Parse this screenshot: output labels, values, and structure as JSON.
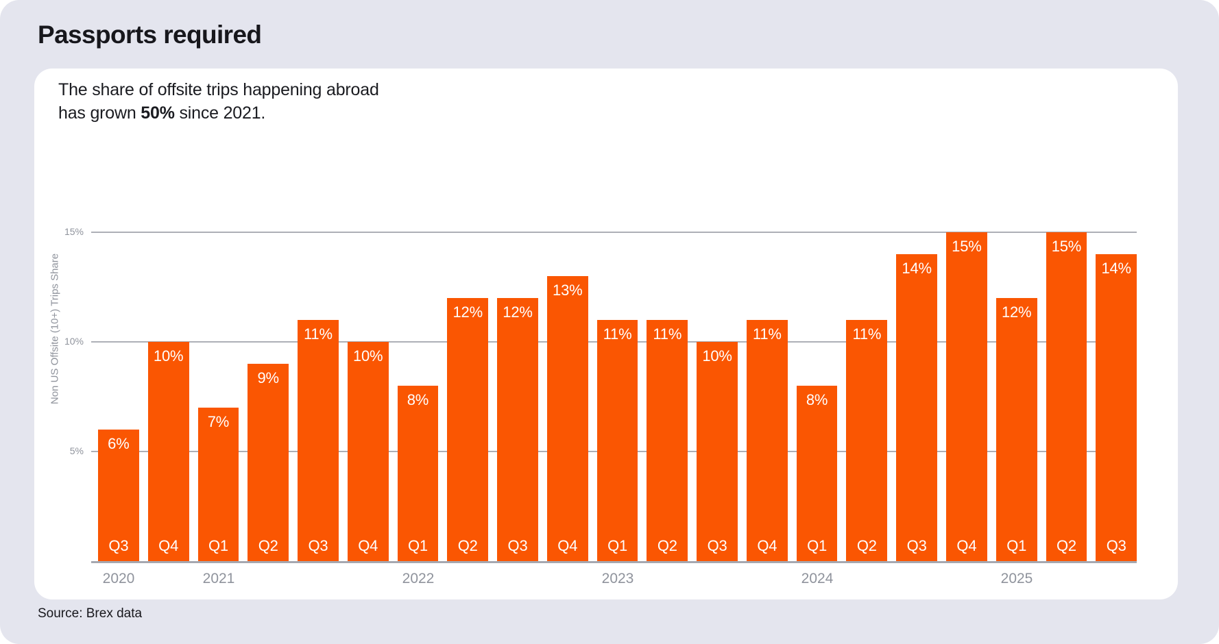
{
  "page": {
    "title": "Passports required",
    "source": "Source: Brex data",
    "background_color": "#E4E5EE",
    "card_color": "#FFFFFF"
  },
  "card": {
    "subtitle": {
      "prefix": "The share of offsite trips happening abroad has grown ",
      "bold": "50%",
      "suffix": " since 2021."
    }
  },
  "chart_data": {
    "type": "bar",
    "title": "Passports required",
    "xlabel": "",
    "ylabel": "Non US Offsite (10+) Trips Share",
    "ylim": [
      0,
      15
    ],
    "grid": "horizontal",
    "legend": "none",
    "bar_color": "#FA5602",
    "bar_label_color": "#FFFFFF",
    "gridline_color": "#ADAFB6",
    "axis_text_color": "#8F939C",
    "yticks": [
      {
        "value": 15,
        "label": "15%"
      },
      {
        "value": 10,
        "label": "10%"
      },
      {
        "value": 5,
        "label": "5%"
      }
    ],
    "categories": [
      "Q3",
      "Q4",
      "Q1",
      "Q2",
      "Q3",
      "Q4",
      "Q1",
      "Q2",
      "Q3",
      "Q4",
      "Q1",
      "Q2",
      "Q3",
      "Q4",
      "Q1",
      "Q2",
      "Q3",
      "Q4",
      "Q1",
      "Q2",
      "Q3"
    ],
    "values": [
      6,
      10,
      7,
      9,
      11,
      10,
      8,
      12,
      12,
      13,
      11,
      11,
      10,
      11,
      8,
      11,
      14,
      15,
      12,
      15,
      14
    ],
    "value_labels": [
      "6%",
      "10%",
      "7%",
      "9%",
      "11%",
      "10%",
      "8%",
      "12%",
      "12%",
      "13%",
      "11%",
      "11%",
      "10%",
      "11%",
      "8%",
      "11%",
      "14%",
      "15%",
      "12%",
      "15%",
      "14%"
    ],
    "years": [
      {
        "label": "2020",
        "bar_index": 0
      },
      {
        "label": "2021",
        "bar_index": 2
      },
      {
        "label": "2022",
        "bar_index": 6
      },
      {
        "label": "2023",
        "bar_index": 10
      },
      {
        "label": "2024",
        "bar_index": 14
      },
      {
        "label": "2025",
        "bar_index": 18
      }
    ]
  }
}
